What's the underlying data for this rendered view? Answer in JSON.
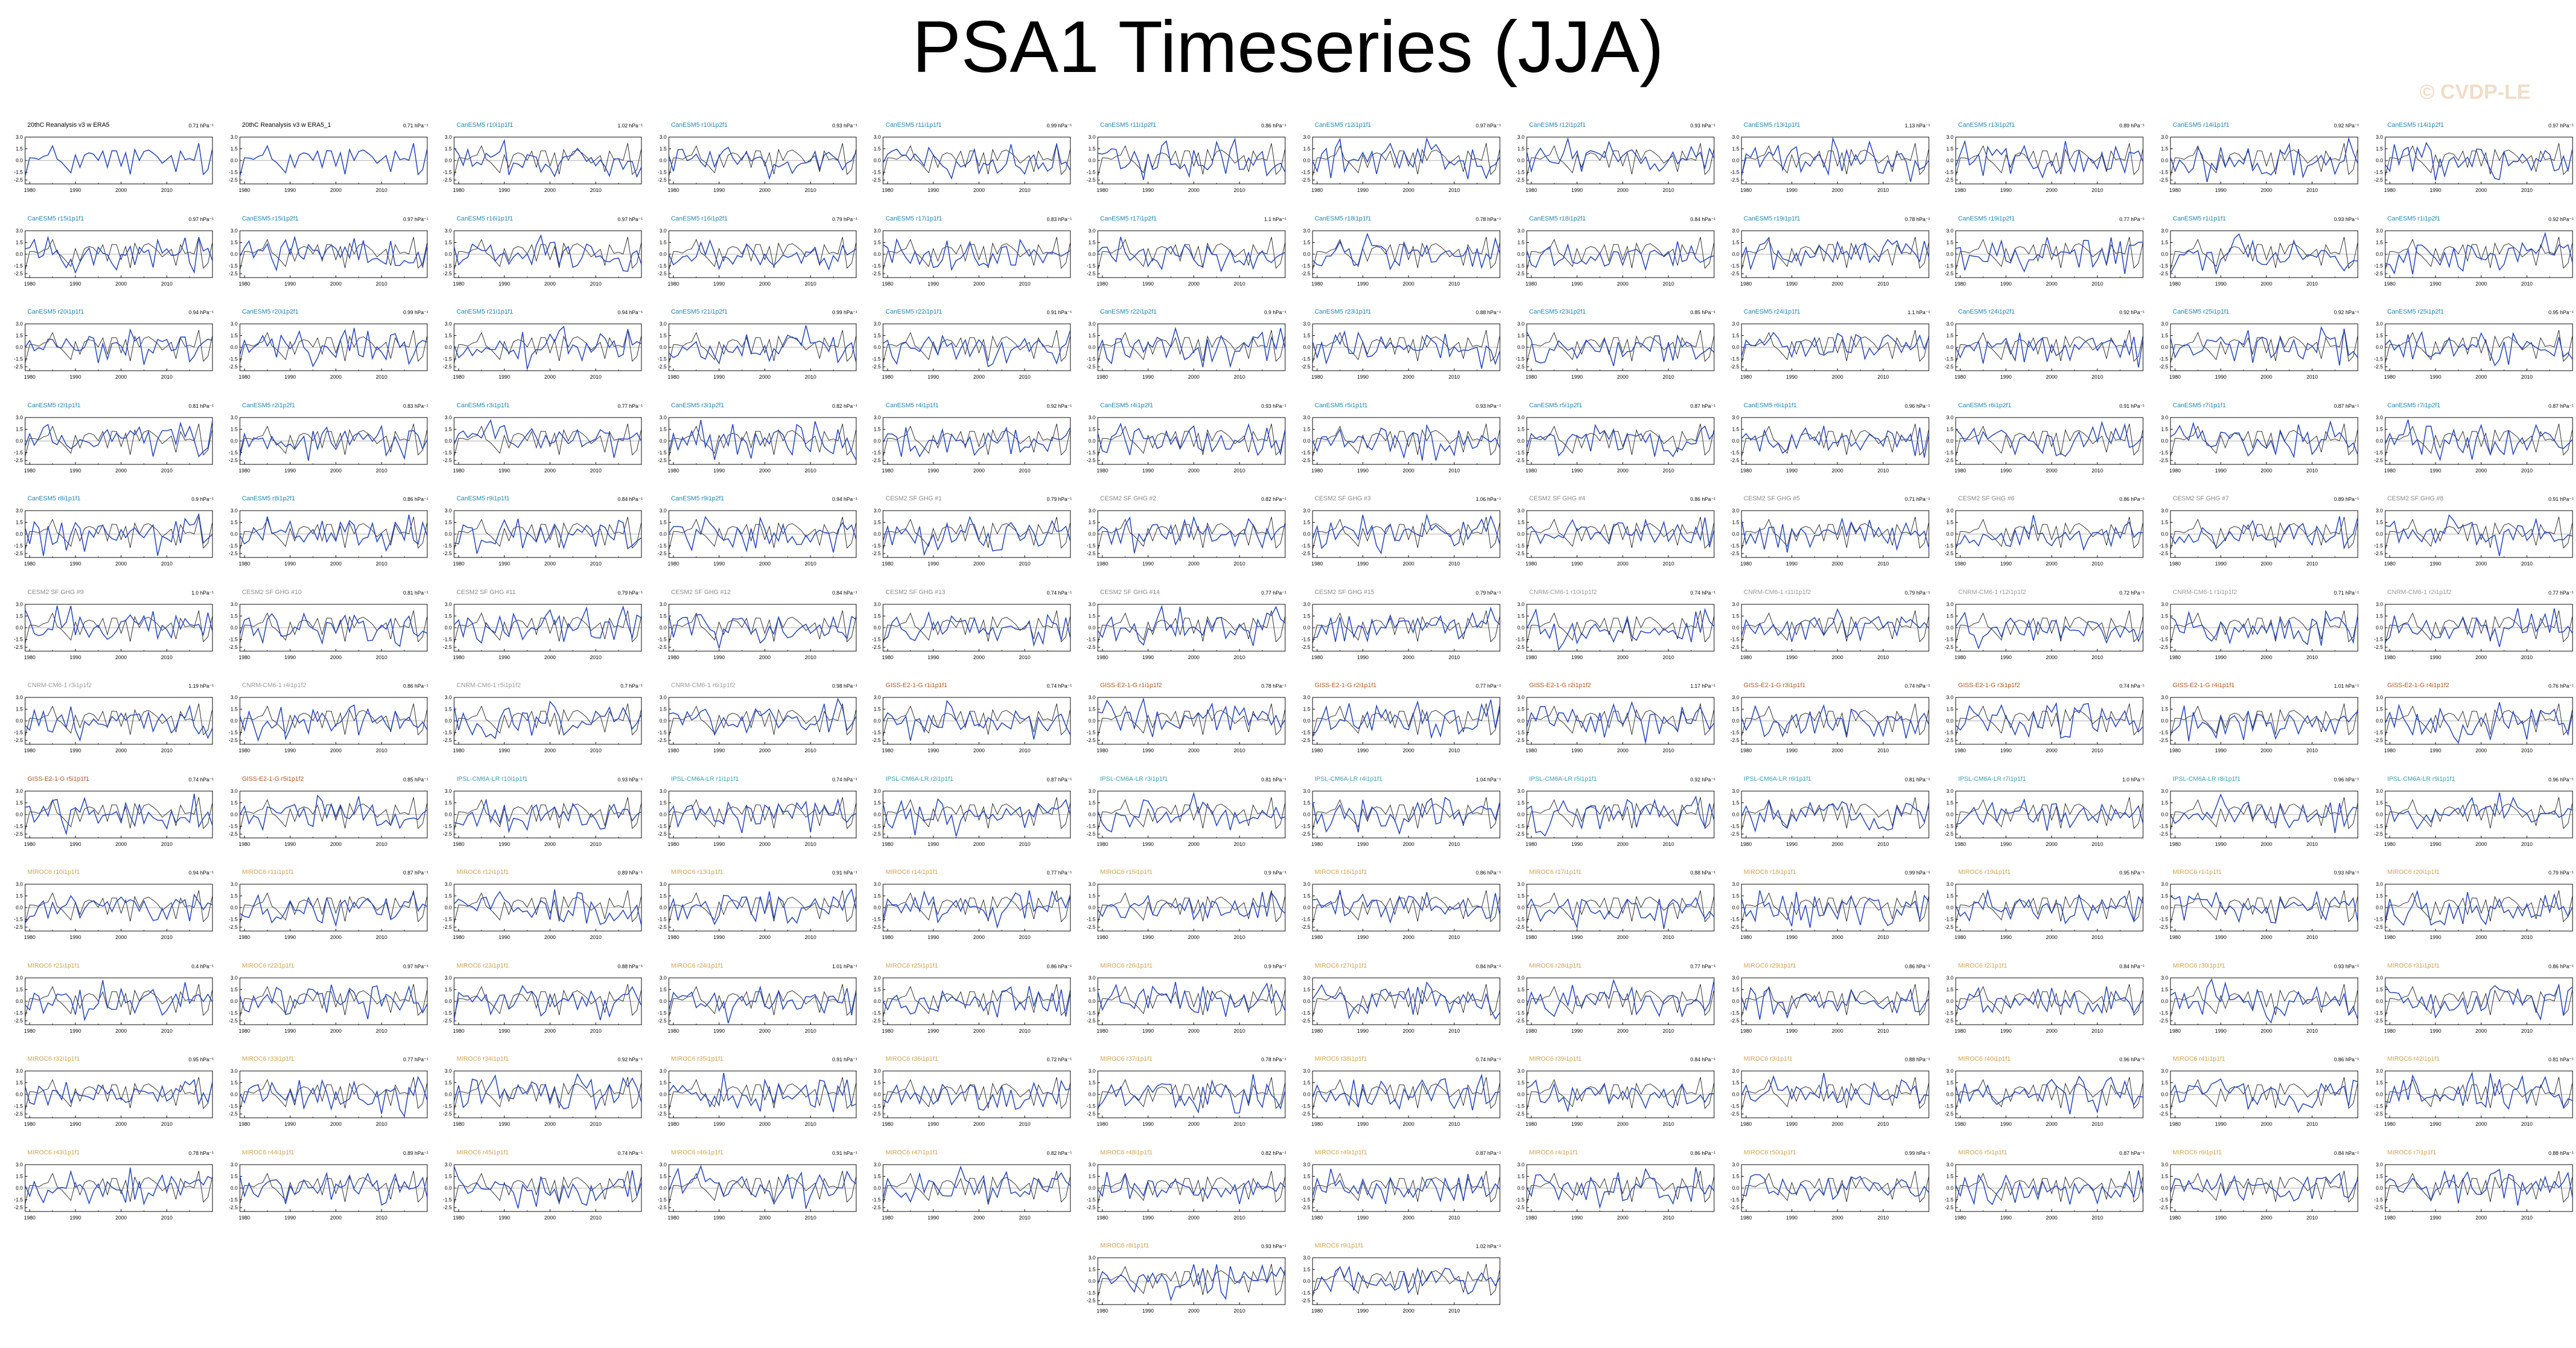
{
  "title": "PSA1 Timeseries (JJA)",
  "watermark": "© CVDP-LE",
  "colors": {
    "obs_line": "#2a2a2a",
    "model_line": "#2747c4",
    "frame": "#000000",
    "zero_line": "#555555"
  },
  "chart_data": {
    "type": "line",
    "x_axis": {
      "range": [
        1979,
        2020
      ],
      "ticks": [
        1980,
        1990,
        2000,
        2010
      ],
      "tick_labels": [
        "1980",
        "1990",
        "2000",
        "2010"
      ]
    },
    "y_axis": {
      "range": [
        -3,
        3
      ],
      "ticks": [
        3,
        1.5,
        0,
        -1.5,
        -2.5
      ],
      "tick_labels": [
        "3.0",
        "1.5",
        "0.0",
        "-1.5",
        "-2.5"
      ]
    },
    "panels": [
      {
        "title": "20thC Reanalysis v3 w ERA5",
        "value": "0.71 hPa⁻¹",
        "title_color": "#000000"
      },
      {
        "title": "20thC Reanalysis v3 w ERA5_1",
        "value": "0.71 hPa⁻¹",
        "title_color": "#000000"
      },
      {
        "title": "CanESM5 r10i1p1f1",
        "value": "1.02 hPa⁻¹",
        "title_color": "#1f86b5"
      },
      {
        "title": "CanESM5 r10i1p2f1",
        "value": "0.93 hPa⁻¹",
        "title_color": "#1f86b5"
      },
      {
        "title": "CanESM5 r11i1p1f1",
        "value": "0.99 hPa⁻¹",
        "title_color": "#1f86b5"
      },
      {
        "title": "CanESM5 r11i1p2f1",
        "value": "0.86 hPa⁻¹",
        "title_color": "#1f86b5"
      },
      {
        "title": "CanESM5 r12i1p1f1",
        "value": "0.97 hPa⁻¹",
        "title_color": "#1f86b5"
      },
      {
        "title": "CanESM5 r12i1p2f1",
        "value": "0.93 hPa⁻¹",
        "title_color": "#1f86b5"
      },
      {
        "title": "CanESM5 r13i1p1f1",
        "value": "1.13 hPa⁻¹",
        "title_color": "#1f86b5"
      },
      {
        "title": "CanESM5 r13i1p2f1",
        "value": "0.89 hPa⁻¹",
        "title_color": "#1f86b5"
      },
      {
        "title": "CanESM5 r14i1p1f1",
        "value": "0.92 hPa⁻¹",
        "title_color": "#1f86b5"
      },
      {
        "title": "CanESM5 r14i1p2f1",
        "value": "0.97 hPa⁻¹",
        "title_color": "#1f86b5"
      },
      {
        "title": "CanESM5 r15i1p1f1",
        "value": "0.97 hPa⁻¹",
        "title_color": "#1f86b5"
      },
      {
        "title": "CanESM5 r15i1p2f1",
        "value": "0.97 hPa⁻¹",
        "title_color": "#1f86b5"
      },
      {
        "title": "CanESM5 r16i1p1f1",
        "value": "0.97 hPa⁻¹",
        "title_color": "#1f86b5"
      },
      {
        "title": "CanESM5 r16i1p2f1",
        "value": "0.79 hPa⁻¹",
        "title_color": "#1f86b5"
      },
      {
        "title": "CanESM5 r17i1p1f1",
        "value": "0.83 hPa⁻¹",
        "title_color": "#1f86b5"
      },
      {
        "title": "CanESM5 r17i1p2f1",
        "value": "1.1 hPa⁻¹",
        "title_color": "#1f86b5"
      },
      {
        "title": "CanESM5 r18i1p1f1",
        "value": "0.78 hPa⁻¹",
        "title_color": "#1f86b5"
      },
      {
        "title": "CanESM5 r18i1p2f1",
        "value": "0.84 hPa⁻¹",
        "title_color": "#1f86b5"
      },
      {
        "title": "CanESM5 r19i1p1f1",
        "value": "0.78 hPa⁻¹",
        "title_color": "#1f86b5"
      },
      {
        "title": "CanESM5 r19i1p2f1",
        "value": "0.77 hPa⁻¹",
        "title_color": "#1f86b5"
      },
      {
        "title": "CanESM5 r1i1p1f1",
        "value": "0.93 hPa⁻¹",
        "title_color": "#1f86b5"
      },
      {
        "title": "CanESM5 r1i1p2f1",
        "value": "0.92 hPa⁻¹",
        "title_color": "#1f86b5"
      },
      {
        "title": "CanESM5 r20i1p1f1",
        "value": "0.94 hPa⁻¹",
        "title_color": "#1f86b5"
      },
      {
        "title": "CanESM5 r20i1p2f1",
        "value": "0.99 hPa⁻¹",
        "title_color": "#1f86b5"
      },
      {
        "title": "CanESM5 r21i1p1f1",
        "value": "0.94 hPa⁻¹",
        "title_color": "#1f86b5"
      },
      {
        "title": "CanESM5 r21i1p2f1",
        "value": "0.99 hPa⁻¹",
        "title_color": "#1f86b5"
      },
      {
        "title": "CanESM5 r22i1p1f1",
        "value": "0.91 hPa⁻¹",
        "title_color": "#1f86b5"
      },
      {
        "title": "CanESM5 r22i1p2f1",
        "value": "0.9 hPa⁻¹",
        "title_color": "#1f86b5"
      },
      {
        "title": "CanESM5 r23i1p1f1",
        "value": "0.88 hPa⁻¹",
        "title_color": "#1f86b5"
      },
      {
        "title": "CanESM5 r23i1p2f1",
        "value": "0.85 hPa⁻¹",
        "title_color": "#1f86b5"
      },
      {
        "title": "CanESM5 r24i1p1f1",
        "value": "1.1 hPa⁻¹",
        "title_color": "#1f86b5"
      },
      {
        "title": "CanESM5 r24i1p2f1",
        "value": "0.92 hPa⁻¹",
        "title_color": "#1f86b5"
      },
      {
        "title": "CanESM5 r25i1p1f1",
        "value": "0.92 hPa⁻¹",
        "title_color": "#1f86b5"
      },
      {
        "title": "CanESM5 r25i1p2f1",
        "value": "0.95 hPa⁻¹",
        "title_color": "#1f86b5"
      },
      {
        "title": "CanESM5 r2i1p1f1",
        "value": "0.81 hPa⁻¹",
        "title_color": "#1f86b5"
      },
      {
        "title": "CanESM5 r2i1p2f1",
        "value": "0.83 hPa⁻¹",
        "title_color": "#1f86b5"
      },
      {
        "title": "CanESM5 r3i1p1f1",
        "value": "0.77 hPa⁻¹",
        "title_color": "#1f86b5"
      },
      {
        "title": "CanESM5 r3i1p2f1",
        "value": "0.82 hPa⁻¹",
        "title_color": "#1f86b5"
      },
      {
        "title": "CanESM5 r4i1p1f1",
        "value": "0.92 hPa⁻¹",
        "title_color": "#1f86b5"
      },
      {
        "title": "CanESM5 r4i1p2f1",
        "value": "0.93 hPa⁻¹",
        "title_color": "#1f86b5"
      },
      {
        "title": "CanESM5 r5i1p1f1",
        "value": "0.93 hPa⁻¹",
        "title_color": "#1f86b5"
      },
      {
        "title": "CanESM5 r5i1p2f1",
        "value": "0.87 hPa⁻¹",
        "title_color": "#1f86b5"
      },
      {
        "title": "CanESM5 r6i1p1f1",
        "value": "0.96 hPa⁻¹",
        "title_color": "#1f86b5"
      },
      {
        "title": "CanESM5 r6i1p2f1",
        "value": "0.91 hPa⁻¹",
        "title_color": "#1f86b5"
      },
      {
        "title": "CanESM5 r7i1p1f1",
        "value": "0.87 hPa⁻¹",
        "title_color": "#1f86b5"
      },
      {
        "title": "CanESM5 r7i1p2f1",
        "value": "0.87 hPa⁻¹",
        "title_color": "#1f86b5"
      },
      {
        "title": "CanESM5 r8i1p1f1",
        "value": "0.9 hPa⁻¹",
        "title_color": "#1f86b5"
      },
      {
        "title": "CanESM5 r8i1p2f1",
        "value": "0.86 hPa⁻¹",
        "title_color": "#1f86b5"
      },
      {
        "title": "CanESM5 r9i1p1f1",
        "value": "0.84 hPa⁻¹",
        "title_color": "#1f86b5"
      },
      {
        "title": "CanESM5 r9i1p2f1",
        "value": "0.94 hPa⁻¹",
        "title_color": "#1f86b5"
      },
      {
        "title": "CESM2 SF GHG #1",
        "value": "0.79 hPa⁻¹",
        "title_color": "#8a8a8a"
      },
      {
        "title": "CESM2 SF GHG #2",
        "value": "0.82 hPa⁻¹",
        "title_color": "#8a8a8a"
      },
      {
        "title": "CESM2 SF GHG #3",
        "value": "1.06 hPa⁻¹",
        "title_color": "#8a8a8a"
      },
      {
        "title": "CESM2 SF GHG #4",
        "value": "0.86 hPa⁻¹",
        "title_color": "#8a8a8a"
      },
      {
        "title": "CESM2 SF GHG #5",
        "value": "0.71 hPa⁻¹",
        "title_color": "#8a8a8a"
      },
      {
        "title": "CESM2 SF GHG #6",
        "value": "0.86 hPa⁻¹",
        "title_color": "#8a8a8a"
      },
      {
        "title": "CESM2 SF GHG #7",
        "value": "0.89 hPa⁻¹",
        "title_color": "#8a8a8a"
      },
      {
        "title": "CESM2 SF GHG #8",
        "value": "0.91 hPa⁻¹",
        "title_color": "#8a8a8a"
      },
      {
        "title": "CESM2 SF GHG #9",
        "value": "1.0 hPa⁻¹",
        "title_color": "#8a8a8a"
      },
      {
        "title": "CESM2 SF GHG #10",
        "value": "0.81 hPa⁻¹",
        "title_color": "#8a8a8a"
      },
      {
        "title": "CESM2 SF GHG #11",
        "value": "0.79 hPa⁻¹",
        "title_color": "#8a8a8a"
      },
      {
        "title": "CESM2 SF GHG #12",
        "value": "0.84 hPa⁻¹",
        "title_color": "#8a8a8a"
      },
      {
        "title": "CESM2 SF GHG #13",
        "value": "0.74 hPa⁻¹",
        "title_color": "#8a8a8a"
      },
      {
        "title": "CESM2 SF GHG #14",
        "value": "0.77 hPa⁻¹",
        "title_color": "#8a8a8a"
      },
      {
        "title": "CESM2 SF GHG #15",
        "value": "0.79 hPa⁻¹",
        "title_color": "#8a8a8a"
      },
      {
        "title": "CNRM-CM6-1 r10i1p1f2",
        "value": "0.74 hPa⁻¹",
        "title_color": "#9a9a9a"
      },
      {
        "title": "CNRM-CM6-1 r11i1p1f2",
        "value": "0.79 hPa⁻¹",
        "title_color": "#9a9a9a"
      },
      {
        "title": "CNRM-CM6-1 r12i1p1f2",
        "value": "0.72 hPa⁻¹",
        "title_color": "#9a9a9a"
      },
      {
        "title": "CNRM-CM6-1 r1i1p1f2",
        "value": "0.71 hPa⁻¹",
        "title_color": "#9a9a9a"
      },
      {
        "title": "CNRM-CM6-1 r2i1p1f2",
        "value": "0.77 hPa⁻¹",
        "title_color": "#9a9a9a"
      },
      {
        "title": "CNRM-CM6-1 r3i1p1f2",
        "value": "1.19 hPa⁻¹",
        "title_color": "#9a9a9a"
      },
      {
        "title": "CNRM-CM6-1 r4i1p1f2",
        "value": "0.86 hPa⁻¹",
        "title_color": "#9a9a9a"
      },
      {
        "title": "CNRM-CM6-1 r5i1p1f2",
        "value": "0.7 hPa⁻¹",
        "title_color": "#9a9a9a"
      },
      {
        "title": "CNRM-CM6-1 r6i1p1f2",
        "value": "0.98 hPa⁻¹",
        "title_color": "#9a9a9a"
      },
      {
        "title": "GISS-E2-1-G r1i1p1f1",
        "value": "0.74 hPa⁻¹",
        "title_color": "#b3541e"
      },
      {
        "title": "GISS-E2-1-G r1i1p1f2",
        "value": "0.78 hPa⁻¹",
        "title_color": "#b3541e"
      },
      {
        "title": "GISS-E2-1-G r2i1p1f1",
        "value": "0.77 hPa⁻¹",
        "title_color": "#b3541e"
      },
      {
        "title": "GISS-E2-1-G r2i1p1f2",
        "value": "1.17 hPa⁻¹",
        "title_color": "#b3541e"
      },
      {
        "title": "GISS-E2-1-G r3i1p1f1",
        "value": "0.74 hPa⁻¹",
        "title_color": "#b3541e"
      },
      {
        "title": "GISS-E2-1-G r3i1p1f2",
        "value": "0.74 hPa⁻¹",
        "title_color": "#b3541e"
      },
      {
        "title": "GISS-E2-1-G r4i1p1f1",
        "value": "1.01 hPa⁻¹",
        "title_color": "#b3541e"
      },
      {
        "title": "GISS-E2-1-G r4i1p1f2",
        "value": "0.76 hPa⁻¹",
        "title_color": "#b3541e"
      },
      {
        "title": "GISS-E2-1-G r5i1p1f1",
        "value": "0.74 hPa⁻¹",
        "title_color": "#b3541e"
      },
      {
        "title": "GISS-E2-1-G r5i1p1f2",
        "value": "0.85 hPa⁻¹",
        "title_color": "#b3541e"
      },
      {
        "title": "IPSL-CM6A-LR r10i1p1f1",
        "value": "0.93 hPa⁻¹",
        "title_color": "#3a9fb0"
      },
      {
        "title": "IPSL-CM6A-LR r1i1p1f1",
        "value": "0.74 hPa⁻¹",
        "title_color": "#3a9fb0"
      },
      {
        "title": "IPSL-CM6A-LR r2i1p1f1",
        "value": "0.87 hPa⁻¹",
        "title_color": "#3a9fb0"
      },
      {
        "title": "IPSL-CM6A-LR r3i1p1f1",
        "value": "0.81 hPa⁻¹",
        "title_color": "#3a9fb0"
      },
      {
        "title": "IPSL-CM6A-LR r4i1p1f1",
        "value": "1.04 hPa⁻¹",
        "title_color": "#3a9fb0"
      },
      {
        "title": "IPSL-CM6A-LR r5i1p1f1",
        "value": "0.92 hPa⁻¹",
        "title_color": "#3a9fb0"
      },
      {
        "title": "IPSL-CM6A-LR r6i1p1f1",
        "value": "0.81 hPa⁻¹",
        "title_color": "#3a9fb0"
      },
      {
        "title": "IPSL-CM6A-LR r7i1p1f1",
        "value": "1.0 hPa⁻¹",
        "title_color": "#3a9fb0"
      },
      {
        "title": "IPSL-CM6A-LR r8i1p1f1",
        "value": "0.96 hPa⁻¹",
        "title_color": "#3a9fb0"
      },
      {
        "title": "IPSL-CM6A-LR r9i1p1f1",
        "value": "0.96 hPa⁻¹",
        "title_color": "#3a9fb0"
      },
      {
        "title": "MIROC6 r10i1p1f1",
        "value": "0.94 hPa⁻¹",
        "title_color": "#d4a24c"
      },
      {
        "title": "MIROC6 r11i1p1f1",
        "value": "0.87 hPa⁻¹",
        "title_color": "#d4a24c"
      },
      {
        "title": "MIROC6 r12i1p1f1",
        "value": "0.89 hPa⁻¹",
        "title_color": "#d4a24c"
      },
      {
        "title": "MIROC6 r13i1p1f1",
        "value": "0.91 hPa⁻¹",
        "title_color": "#d4a24c"
      },
      {
        "title": "MIROC6 r14i1p1f1",
        "value": "0.77 hPa⁻¹",
        "title_color": "#d4a24c"
      },
      {
        "title": "MIROC6 r15i1p1f1",
        "value": "0.9 hPa⁻¹",
        "title_color": "#d4a24c"
      },
      {
        "title": "MIROC6 r16i1p1f1",
        "value": "0.86 hPa⁻¹",
        "title_color": "#d4a24c"
      },
      {
        "title": "MIROC6 r17i1p1f1",
        "value": "0.88 hPa⁻¹",
        "title_color": "#d4a24c"
      },
      {
        "title": "MIROC6 r18i1p1f1",
        "value": "0.99 hPa⁻¹",
        "title_color": "#d4a24c"
      },
      {
        "title": "MIROC6 r19i1p1f1",
        "value": "0.95 hPa⁻¹",
        "title_color": "#d4a24c"
      },
      {
        "title": "MIROC6 r1i1p1f1",
        "value": "0.93 hPa⁻¹",
        "title_color": "#d4a24c"
      },
      {
        "title": "MIROC6 r20i1p1f1",
        "value": "0.79 hPa⁻¹",
        "title_color": "#d4a24c"
      },
      {
        "title": "MIROC6 r21i1p1f1",
        "value": "0.4 hPa⁻¹",
        "title_color": "#d4a24c"
      },
      {
        "title": "MIROC6 r22i1p1f1",
        "value": "0.97 hPa⁻¹",
        "title_color": "#d4a24c"
      },
      {
        "title": "MIROC6 r23i1p1f1",
        "value": "0.88 hPa⁻¹",
        "title_color": "#d4a24c"
      },
      {
        "title": "MIROC6 r24i1p1f1",
        "value": "1.01 hPa⁻¹",
        "title_color": "#d4a24c"
      },
      {
        "title": "MIROC6 r25i1p1f1",
        "value": "0.86 hPa⁻¹",
        "title_color": "#d4a24c"
      },
      {
        "title": "MIROC6 r26i1p1f1",
        "value": "0.9 hPa⁻¹",
        "title_color": "#d4a24c"
      },
      {
        "title": "MIROC6 r27i1p1f1",
        "value": "0.84 hPa⁻¹",
        "title_color": "#d4a24c"
      },
      {
        "title": "MIROC6 r28i1p1f1",
        "value": "0.77 hPa⁻¹",
        "title_color": "#d4a24c"
      },
      {
        "title": "MIROC6 r29i1p1f1",
        "value": "0.86 hPa⁻¹",
        "title_color": "#d4a24c"
      },
      {
        "title": "MIROC6 r2i1p1f1",
        "value": "0.84 hPa⁻¹",
        "title_color": "#d4a24c"
      },
      {
        "title": "MIROC6 r30i1p1f1",
        "value": "0.93 hPa⁻¹",
        "title_color": "#d4a24c"
      },
      {
        "title": "MIROC6 r31i1p1f1",
        "value": "0.86 hPa⁻¹",
        "title_color": "#d4a24c"
      },
      {
        "title": "MIROC6 r32i1p1f1",
        "value": "0.95 hPa⁻¹",
        "title_color": "#d4a24c"
      },
      {
        "title": "MIROC6 r33i1p1f1",
        "value": "0.77 hPa⁻¹",
        "title_color": "#d4a24c"
      },
      {
        "title": "MIROC6 r34i1p1f1",
        "value": "0.92 hPa⁻¹",
        "title_color": "#d4a24c"
      },
      {
        "title": "MIROC6 r35i1p1f1",
        "value": "0.91 hPa⁻¹",
        "title_color": "#d4a24c"
      },
      {
        "title": "MIROC6 r36i1p1f1",
        "value": "0.72 hPa⁻¹",
        "title_color": "#d4a24c"
      },
      {
        "title": "MIROC6 r37i1p1f1",
        "value": "0.78 hPa⁻¹",
        "title_color": "#d4a24c"
      },
      {
        "title": "MIROC6 r38i1p1f1",
        "value": "0.74 hPa⁻¹",
        "title_color": "#d4a24c"
      },
      {
        "title": "MIROC6 r39i1p1f1",
        "value": "0.84 hPa⁻¹",
        "title_color": "#d4a24c"
      },
      {
        "title": "MIROC6 r3i1p1f1",
        "value": "0.88 hPa⁻¹",
        "title_color": "#d4a24c"
      },
      {
        "title": "MIROC6 r40i1p1f1",
        "value": "0.96 hPa⁻¹",
        "title_color": "#d4a24c"
      },
      {
        "title": "MIROC6 r41i1p1f1",
        "value": "0.86 hPa⁻¹",
        "title_color": "#d4a24c"
      },
      {
        "title": "MIROC6 r42i1p1f1",
        "value": "0.81 hPa⁻¹",
        "title_color": "#d4a24c"
      },
      {
        "title": "MIROC6 r43i1p1f1",
        "value": "0.78 hPa⁻¹",
        "title_color": "#d4a24c"
      },
      {
        "title": "MIROC6 r44i1p1f1",
        "value": "0.89 hPa⁻¹",
        "title_color": "#d4a24c"
      },
      {
        "title": "MIROC6 r45i1p1f1",
        "value": "0.74 hPa⁻¹",
        "title_color": "#d4a24c"
      },
      {
        "title": "MIROC6 r46i1p1f1",
        "value": "0.91 hPa⁻¹",
        "title_color": "#d4a24c"
      },
      {
        "title": "MIROC6 r47i1p1f1",
        "value": "0.82 hPa⁻¹",
        "title_color": "#d4a24c"
      },
      {
        "title": "MIROC6 r48i1p1f1",
        "value": "0.82 hPa⁻¹",
        "title_color": "#d4a24c"
      },
      {
        "title": "MIROC6 r49i1p1f1",
        "value": "0.87 hPa⁻¹",
        "title_color": "#d4a24c"
      },
      {
        "title": "MIROC6 r4i1p1f1",
        "value": "0.86 hPa⁻¹",
        "title_color": "#d4a24c"
      },
      {
        "title": "MIROC6 r50i1p1f1",
        "value": "0.99 hPa⁻¹",
        "title_color": "#d4a24c"
      },
      {
        "title": "MIROC6 r5i1p1f1",
        "value": "0.87 hPa⁻¹",
        "title_color": "#d4a24c"
      },
      {
        "title": "MIROC6 r6i1p1f1",
        "value": "0.84 hPa⁻¹",
        "title_color": "#d4a24c"
      },
      {
        "title": "MIROC6 r7i1p1f1",
        "value": "0.88 hPa⁻¹",
        "title_color": "#d4a24c"
      },
      {
        "title": "MIROC6 r8i1p1f1",
        "value": "0.93 hPa⁻¹",
        "title_color": "#d4a24c"
      },
      {
        "title": "MIROC6 r9i1p1f1",
        "value": "1.02 hPa⁻¹",
        "title_color": "#d4a24c"
      }
    ]
  }
}
